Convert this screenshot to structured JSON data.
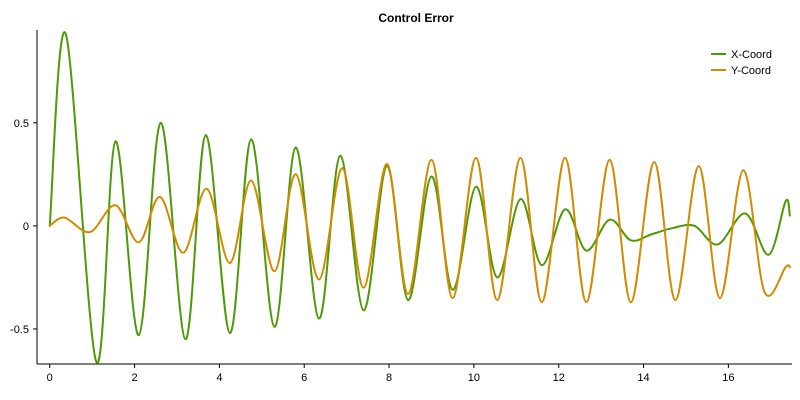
{
  "chart_data": {
    "type": "line",
    "title": "Control Error",
    "xlabel": "",
    "ylabel": "",
    "xlim": [
      -0.3,
      17.5
    ],
    "ylim": [
      -0.67,
      0.95
    ],
    "x_ticks": [
      0,
      2,
      4,
      6,
      8,
      10,
      12,
      14,
      16
    ],
    "y_ticks": [
      0.5,
      0,
      -0.5
    ],
    "x_tick_labels": [
      "0",
      "2",
      "4",
      "6",
      "8",
      "10",
      "12",
      "14",
      "16"
    ],
    "y_tick_labels": [
      "0.5",
      "0",
      "-0.5"
    ],
    "grid": false,
    "legend_position": "top-right",
    "series": [
      {
        "name": "X-Coord",
        "color": "#4d9a06",
        "x": [
          0,
          0.38,
          1.1,
          1.55,
          2.1,
          2.62,
          3.2,
          3.68,
          4.25,
          4.75,
          5.3,
          5.8,
          6.35,
          6.85,
          7.4,
          7.95,
          8.45,
          9.0,
          9.5,
          10.05,
          10.55,
          11.1,
          11.6,
          12.15,
          12.65,
          13.2,
          13.7,
          14.2,
          14.7,
          15.2,
          15.75,
          16.4,
          16.95,
          17.35,
          17.45
        ],
        "y": [
          0,
          0.93,
          -0.66,
          0.41,
          -0.53,
          0.5,
          -0.55,
          0.44,
          -0.52,
          0.42,
          -0.49,
          0.38,
          -0.45,
          0.34,
          -0.41,
          0.29,
          -0.36,
          0.24,
          -0.31,
          0.19,
          -0.25,
          0.13,
          -0.19,
          0.08,
          -0.12,
          0.03,
          -0.07,
          -0.04,
          -0.01,
          0.0,
          -0.09,
          0.06,
          -0.14,
          0.12,
          0.05
        ]
      },
      {
        "name": "Y-Coord",
        "color": "#d08b00",
        "x": [
          0,
          0.35,
          0.95,
          1.55,
          2.1,
          2.6,
          3.15,
          3.7,
          4.25,
          4.75,
          5.3,
          5.8,
          6.35,
          6.9,
          7.4,
          7.95,
          8.45,
          9.0,
          9.5,
          10.05,
          10.55,
          11.1,
          11.6,
          12.15,
          12.65,
          13.2,
          13.7,
          14.25,
          14.75,
          15.3,
          15.8,
          16.35,
          16.85,
          17.35,
          17.45
        ],
        "y": [
          0,
          0.04,
          -0.03,
          0.1,
          -0.08,
          0.14,
          -0.13,
          0.18,
          -0.18,
          0.22,
          -0.22,
          0.25,
          -0.26,
          0.28,
          -0.3,
          0.3,
          -0.33,
          0.32,
          -0.35,
          0.33,
          -0.36,
          0.33,
          -0.37,
          0.33,
          -0.37,
          0.32,
          -0.37,
          0.31,
          -0.36,
          0.29,
          -0.35,
          0.27,
          -0.32,
          -0.2,
          -0.2
        ]
      }
    ]
  }
}
